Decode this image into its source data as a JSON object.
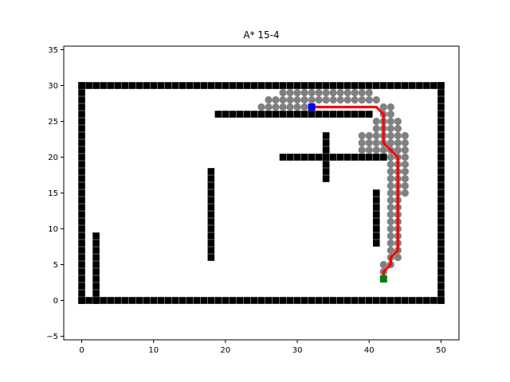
{
  "chart_data": {
    "type": "scatter",
    "title": "A* 15-4",
    "xlabel": "",
    "ylabel": "",
    "xlim": [
      -2.5,
      52.5
    ],
    "ylim": [
      -5.5,
      35.5
    ],
    "xticks": [
      0,
      10,
      20,
      30,
      40,
      50
    ],
    "yticks": [
      -5,
      0,
      5,
      10,
      15,
      20,
      25,
      30,
      35
    ],
    "grid": false,
    "legend": "none",
    "colors": {
      "obstacle": "#000000",
      "explored": "#808080",
      "path": "#ff0000",
      "start": "#0000ff",
      "goal": "#008000"
    },
    "obstacles": {
      "walls": [
        {
          "from": [
            0,
            0
          ],
          "to": [
            50,
            0
          ]
        },
        {
          "from": [
            0,
            30
          ],
          "to": [
            50,
            30
          ]
        },
        {
          "from": [
            0,
            0
          ],
          "to": [
            0,
            30
          ]
        },
        {
          "from": [
            50,
            0
          ],
          "to": [
            50,
            30
          ]
        },
        {
          "from": [
            2,
            0
          ],
          "to": [
            2,
            9
          ]
        },
        {
          "from": [
            18,
            6
          ],
          "to": [
            18,
            18
          ]
        },
        {
          "from": [
            19,
            26
          ],
          "to": [
            40,
            26
          ]
        },
        {
          "from": [
            28,
            20
          ],
          "to": [
            42,
            20
          ]
        },
        {
          "from": [
            34,
            17
          ],
          "to": [
            34,
            23
          ]
        },
        {
          "from": [
            41,
            8
          ],
          "to": [
            41,
            15
          ]
        }
      ]
    },
    "explored": [
      [
        25,
        27
      ],
      [
        26,
        27
      ],
      [
        27,
        27
      ],
      [
        28,
        27
      ],
      [
        29,
        27
      ],
      [
        30,
        27
      ],
      [
        31,
        27
      ],
      [
        26,
        28
      ],
      [
        27,
        28
      ],
      [
        28,
        28
      ],
      [
        29,
        28
      ],
      [
        30,
        28
      ],
      [
        31,
        28
      ],
      [
        32,
        28
      ],
      [
        33,
        28
      ],
      [
        34,
        28
      ],
      [
        35,
        28
      ],
      [
        36,
        28
      ],
      [
        37,
        28
      ],
      [
        38,
        28
      ],
      [
        39,
        28
      ],
      [
        40,
        28
      ],
      [
        41,
        28
      ],
      [
        28,
        29
      ],
      [
        29,
        29
      ],
      [
        30,
        29
      ],
      [
        31,
        29
      ],
      [
        32,
        29
      ],
      [
        33,
        29
      ],
      [
        34,
        29
      ],
      [
        35,
        29
      ],
      [
        36,
        29
      ],
      [
        37,
        29
      ],
      [
        38,
        29
      ],
      [
        39,
        29
      ],
      [
        40,
        29
      ],
      [
        42,
        27
      ],
      [
        43,
        27
      ],
      [
        42,
        26
      ],
      [
        43,
        26
      ],
      [
        41,
        25
      ],
      [
        42,
        25
      ],
      [
        43,
        25
      ],
      [
        44,
        25
      ],
      [
        41,
        24
      ],
      [
        42,
        24
      ],
      [
        43,
        24
      ],
      [
        44,
        24
      ],
      [
        39,
        23
      ],
      [
        40,
        23
      ],
      [
        41,
        23
      ],
      [
        42,
        23
      ],
      [
        43,
        23
      ],
      [
        44,
        23
      ],
      [
        45,
        23
      ],
      [
        39,
        22
      ],
      [
        40,
        22
      ],
      [
        41,
        22
      ],
      [
        42,
        22
      ],
      [
        43,
        22
      ],
      [
        44,
        22
      ],
      [
        45,
        22
      ],
      [
        39,
        21
      ],
      [
        40,
        21
      ],
      [
        41,
        21
      ],
      [
        42,
        21
      ],
      [
        43,
        21
      ],
      [
        44,
        21
      ],
      [
        45,
        21
      ],
      [
        43,
        20
      ],
      [
        44,
        20
      ],
      [
        45,
        20
      ],
      [
        43,
        19
      ],
      [
        44,
        19
      ],
      [
        45,
        19
      ],
      [
        43,
        18
      ],
      [
        44,
        18
      ],
      [
        45,
        18
      ],
      [
        43,
        17
      ],
      [
        44,
        17
      ],
      [
        45,
        17
      ],
      [
        43,
        16
      ],
      [
        44,
        16
      ],
      [
        45,
        16
      ],
      [
        43,
        15
      ],
      [
        44,
        15
      ],
      [
        45,
        15
      ],
      [
        43,
        14
      ],
      [
        44,
        14
      ],
      [
        43,
        13
      ],
      [
        44,
        13
      ],
      [
        43,
        12
      ],
      [
        44,
        12
      ],
      [
        43,
        11
      ],
      [
        44,
        11
      ],
      [
        43,
        10
      ],
      [
        44,
        10
      ],
      [
        43,
        9
      ],
      [
        44,
        9
      ],
      [
        43,
        8
      ],
      [
        44,
        8
      ],
      [
        43,
        7
      ],
      [
        44,
        7
      ],
      [
        43,
        6
      ],
      [
        44,
        6
      ],
      [
        42,
        5
      ],
      [
        43,
        5
      ],
      [
        42,
        4
      ]
    ],
    "path": [
      [
        32,
        27
      ],
      [
        41,
        27
      ],
      [
        42,
        26
      ],
      [
        42,
        22
      ],
      [
        43,
        21
      ],
      [
        44,
        20
      ],
      [
        44,
        7
      ],
      [
        43,
        6
      ],
      [
        43,
        5
      ],
      [
        42,
        4
      ],
      [
        42,
        3
      ]
    ],
    "start": [
      32,
      27
    ],
    "goal": [
      42,
      3
    ]
  }
}
